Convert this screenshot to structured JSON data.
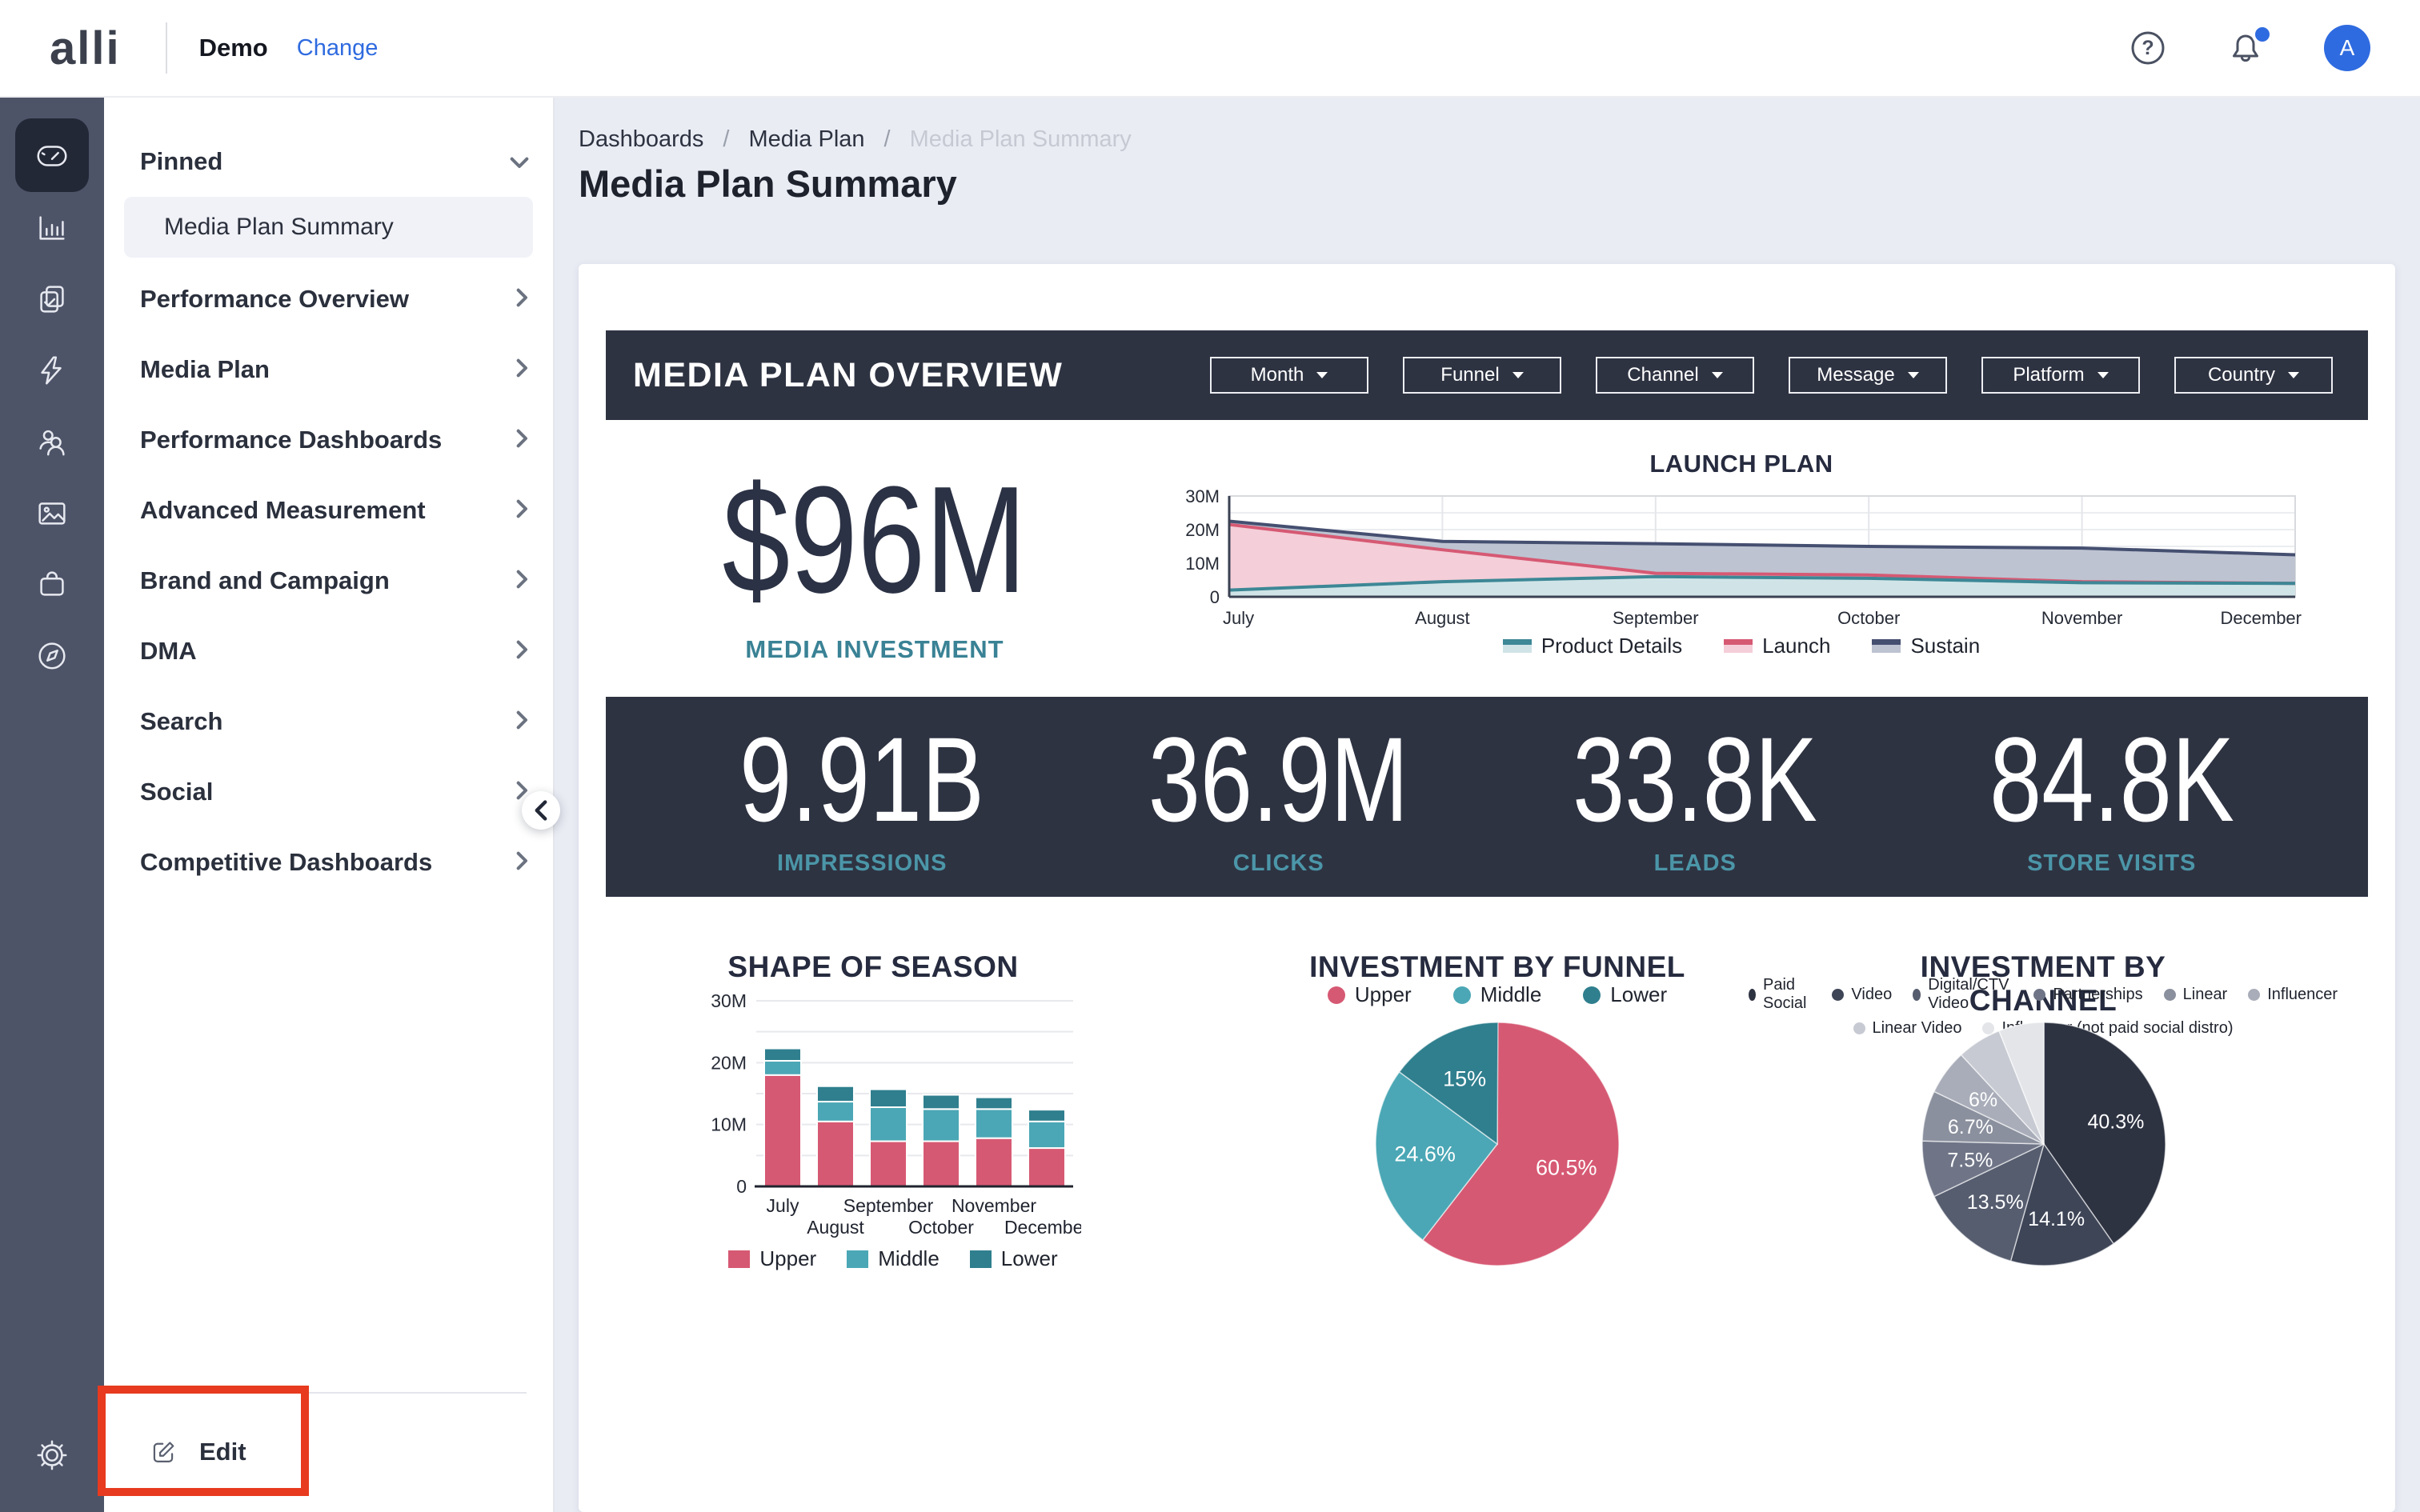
{
  "colors": {
    "accent_blue": "#2f6be0",
    "dark_navy": "#2e3342",
    "teal": "#3d8796",
    "pink": "#d65973",
    "annotation_red": "#e73a1e",
    "rail_bg": "#4e5468",
    "stat_label_teal": "#4b96a8"
  },
  "topbar": {
    "logo": "alli",
    "workspace": "Demo",
    "change_link": "Change",
    "help_glyph": "?",
    "avatar_initial": "A"
  },
  "rail": {
    "icons": [
      "dashboard-gauge",
      "bar-chart",
      "clipboard-check",
      "lightning-bolt",
      "users",
      "image",
      "shopping-bag",
      "compass"
    ],
    "bottom_icon": "settings-gear"
  },
  "sidebar": {
    "pinned_label": "Pinned",
    "pinned_item": "Media Plan Summary",
    "items": [
      "Performance Overview",
      "Media Plan",
      "Performance Dashboards",
      "Advanced Measurement",
      "Brand and Campaign",
      "DMA",
      "Search",
      "Social",
      "Competitive Dashboards"
    ],
    "edit_label": "Edit"
  },
  "breadcrumb": {
    "items": [
      "Dashboards",
      "Media Plan",
      "Media Plan Summary"
    ],
    "separator": "/"
  },
  "page_title": "Media Plan Summary",
  "overview": {
    "title": "MEDIA PLAN OVERVIEW",
    "filters": [
      "Month",
      "Funnel",
      "Channel",
      "Message",
      "Platform",
      "Country"
    ]
  },
  "kpi": {
    "value": "$96M",
    "label": "MEDIA INVESTMENT"
  },
  "stats": [
    {
      "value": "9.91B",
      "label": "IMPRESSIONS"
    },
    {
      "value": "36.9M",
      "label": "CLICKS"
    },
    {
      "value": "33.8K",
      "label": "LEADS"
    },
    {
      "value": "84.8K",
      "label": "STORE VISITS"
    }
  ],
  "chart_data": [
    {
      "type": "area",
      "title": "LAUNCH PLAN",
      "x": [
        "July",
        "August",
        "September",
        "October",
        "November",
        "December"
      ],
      "ylim_millions": [
        0,
        30
      ],
      "yticks": [
        "0",
        "10M",
        "20M",
        "30M"
      ],
      "grid": true,
      "legend_position": "bottom",
      "series": [
        {
          "name": "Sustain",
          "values_millions": [
            22.5,
            16.5,
            15.8,
            15.0,
            14.5,
            12.5
          ],
          "line_color": "#454f70",
          "fill_color": "#bdc3d1"
        },
        {
          "name": "Launch",
          "values_millions": [
            21.5,
            14.0,
            7.0,
            6.5,
            4.5,
            4.0
          ],
          "line_color": "#d65973",
          "fill_color": "#f4ced8"
        },
        {
          "name": "Product Details",
          "values_millions": [
            2.0,
            4.5,
            6.0,
            5.5,
            4.2,
            4.0
          ],
          "line_color": "#3d8796",
          "fill_color": "#d0e4e7"
        }
      ],
      "legend_order": [
        "Product Details",
        "Launch",
        "Sustain"
      ]
    },
    {
      "type": "bar",
      "stacked": true,
      "title": "SHAPE OF SEASON",
      "categories": [
        "July",
        "August",
        "September",
        "October",
        "November",
        "December"
      ],
      "ylim_millions": [
        0,
        30
      ],
      "yticks": [
        "0",
        "10M",
        "20M",
        "30M"
      ],
      "grid": true,
      "legend_position": "bottom",
      "series": [
        {
          "name": "Upper",
          "color": "#d65973",
          "values_millions": [
            18.0,
            10.5,
            7.3,
            7.3,
            7.8,
            6.2
          ]
        },
        {
          "name": "Middle",
          "color": "#4ba7b5",
          "values_millions": [
            2.3,
            3.2,
            5.5,
            5.2,
            4.7,
            4.3
          ]
        },
        {
          "name": "Lower",
          "color": "#2f7f8e",
          "values_millions": [
            2.0,
            2.5,
            2.9,
            2.3,
            1.9,
            1.9
          ]
        }
      ]
    },
    {
      "type": "pie",
      "title": "INVESTMENT BY FUNNEL",
      "legend_position": "top",
      "slices": [
        {
          "label": "Upper",
          "value_pct": 60.5,
          "display": "60.5%",
          "color": "#d65973"
        },
        {
          "label": "Middle",
          "value_pct": 24.6,
          "display": "24.6%",
          "color": "#4ba7b5"
        },
        {
          "label": "Lower",
          "value_pct": 15.0,
          "display": "15%",
          "color": "#2f7f8e"
        }
      ]
    },
    {
      "type": "pie",
      "title": "INVESTMENT BY CHANNEL",
      "legend_position": "top",
      "slices": [
        {
          "label": "Paid Social",
          "value_pct": 40.3,
          "display": "40.3%",
          "color": "#2e3342"
        },
        {
          "label": "Video",
          "value_pct": 14.1,
          "display": "14.1%",
          "color": "#3e4557"
        },
        {
          "label": "Digital/CTV Video",
          "value_pct": 13.5,
          "display": "13.5%",
          "color": "#565d6f"
        },
        {
          "label": "Partnerships",
          "value_pct": 7.5,
          "display": "7.5%",
          "color": "#6f7587"
        },
        {
          "label": "Linear",
          "value_pct": 6.7,
          "display": "6.7%",
          "color": "#8b909e"
        },
        {
          "label": "Influencer",
          "value_pct": 6.0,
          "display": "6%",
          "color": "#a9adb9"
        },
        {
          "label": "Linear Video",
          "value_pct": 5.9,
          "display": null,
          "color": "#c7cad2"
        },
        {
          "label": "Influencer (not paid social distro)",
          "value_pct": 6.0,
          "display": null,
          "color": "#e3e5e9"
        }
      ]
    }
  ]
}
